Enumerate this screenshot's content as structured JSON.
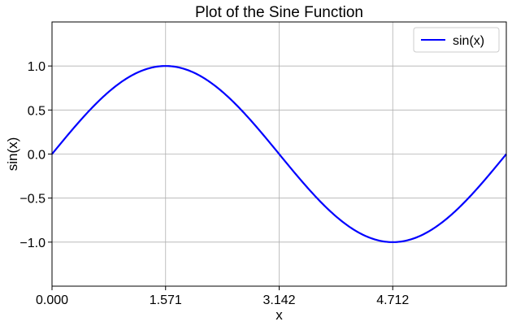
{
  "chart_data": {
    "type": "line",
    "title": "Plot of the Sine Function",
    "xlabel": "x",
    "ylabel": "sin(x)",
    "xlim": [
      0,
      6.2832
    ],
    "ylim": [
      -1.5,
      1.5
    ],
    "grid": true,
    "legend_position": "top-right",
    "x_ticks": [
      0,
      1.5708,
      3.1416,
      4.7124
    ],
    "x_tick_labels": [
      "0.000",
      "1.571",
      "3.142",
      "4.712"
    ],
    "y_ticks": [
      1.0,
      0.5,
      0.0,
      -0.5,
      -1.0
    ],
    "y_tick_labels": [
      "1.0",
      "0.5",
      "0.0",
      "−0.5",
      "−1.0"
    ],
    "series": [
      {
        "name": "sin(x)",
        "color": "#0000ff",
        "function": "sin",
        "x_range": [
          0,
          6.2832
        ],
        "points": [
          [
            0.0,
            0.0
          ],
          [
            0.7854,
            0.7071
          ],
          [
            1.5708,
            1.0
          ],
          [
            2.3562,
            0.7071
          ],
          [
            3.1416,
            0.0
          ],
          [
            3.927,
            -0.7071
          ],
          [
            4.7124,
            -1.0
          ],
          [
            5.4978,
            -0.7071
          ],
          [
            6.2832,
            0.0
          ]
        ]
      }
    ]
  }
}
